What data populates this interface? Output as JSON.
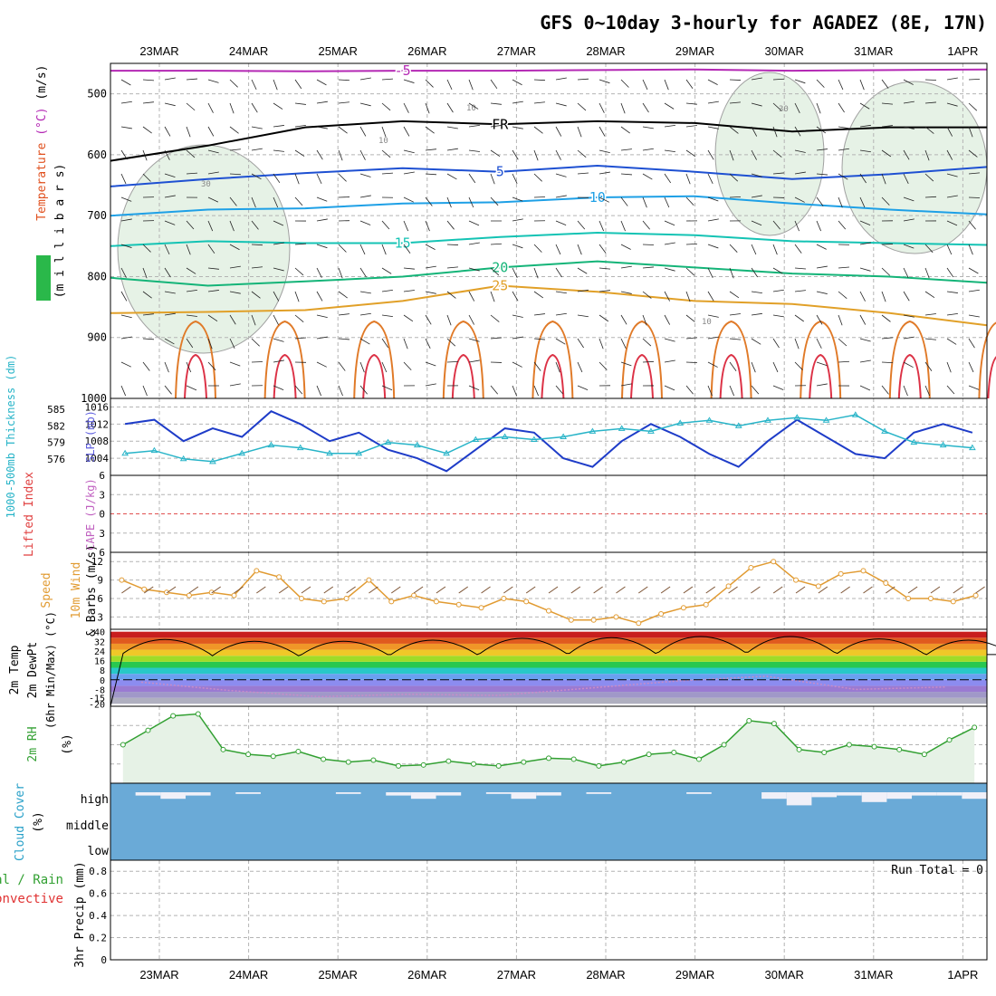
{
  "title": "GFS 0~10day 3-hourly for AGADEZ (8E, 17N)",
  "dates": [
    "23MAR",
    "24MAR",
    "25MAR",
    "26MAR",
    "27MAR",
    "28MAR",
    "29MAR",
    "30MAR",
    "31MAR",
    "1APR"
  ],
  "colors": {
    "grid": "#b4b4b4",
    "rh_fill": "#e6f2e6",
    "slp": "#1e3cc8",
    "thickness": "#28b4c8",
    "wind_speed": "#e19b32",
    "rh2m": "#32a032",
    "cloud": "#6aaad7",
    "cloud_gap": "#f0f0f8"
  },
  "chart_data": [
    {
      "panel": "upper-air",
      "type": "contour",
      "ylabel_parts": [
        "RH (%)",
        "Temperature (°C)",
        "Wind (m/s)"
      ],
      "ylabel_unit": "(m i l l i b a r s)",
      "ylim_mb": [
        450,
        1000
      ],
      "yticks": [
        500,
        600,
        700,
        800,
        900,
        1000
      ],
      "isotherms": [
        {
          "label": "-5",
          "color": "#b428b4",
          "level_mb": [
            462,
            462,
            463,
            462,
            462,
            461,
            460,
            462,
            461,
            460
          ]
        },
        {
          "label": "FR",
          "color": "#000000",
          "level_mb": [
            610,
            585,
            555,
            545,
            550,
            545,
            548,
            562,
            555,
            555
          ]
        },
        {
          "label": "5",
          "color": "#1e50d2",
          "level_mb": [
            652,
            640,
            630,
            622,
            628,
            618,
            628,
            640,
            632,
            620
          ]
        },
        {
          "label": "10",
          "color": "#1ea0e6",
          "level_mb": [
            700,
            690,
            688,
            680,
            678,
            670,
            668,
            680,
            690,
            698
          ]
        },
        {
          "label": "15",
          "color": "#14c3b4",
          "level_mb": [
            750,
            742,
            745,
            745,
            735,
            728,
            732,
            742,
            745,
            748
          ]
        },
        {
          "label": "20",
          "color": "#14b478",
          "level_mb": [
            802,
            815,
            808,
            800,
            785,
            775,
            785,
            795,
            800,
            810
          ]
        },
        {
          "label": "25",
          "color": "#e1a028",
          "level_mb": [
            860,
            858,
            855,
            840,
            815,
            825,
            840,
            845,
            860,
            880
          ]
        }
      ],
      "rh_labels": [
        "10",
        "10",
        "30",
        "30",
        "10"
      ]
    },
    {
      "panel": "slp-thickness",
      "type": "line",
      "ylabel_left": "1000-500mb Thickness (dm)",
      "ylabel_right": "SLP (mb)",
      "thickness_ticks": [
        576,
        579,
        582,
        585
      ],
      "slp_ticks": [
        1004,
        1008,
        1012,
        1016
      ],
      "series": [
        {
          "name": "SLP (mb)",
          "values": [
            1012,
            1013,
            1008,
            1011,
            1009,
            1015,
            1012,
            1008,
            1010,
            1006,
            1004,
            1001,
            1006,
            1011,
            1010,
            1004,
            1002,
            1008,
            1012,
            1009,
            1005,
            1002,
            1008,
            1013,
            1009,
            1005,
            1004,
            1010,
            1012,
            1010
          ]
        },
        {
          "name": "1000-500mb Thickness (dm)",
          "values": [
            577,
            577.5,
            576,
            575.5,
            577,
            578.5,
            578,
            577,
            577,
            579,
            578.5,
            577,
            579.5,
            580,
            579.5,
            580,
            581,
            581.5,
            581,
            582.5,
            583,
            582,
            583,
            583.5,
            583,
            584,
            581,
            579,
            578.5,
            578
          ]
        }
      ]
    },
    {
      "panel": "cape-li",
      "type": "line",
      "ylabel_left": "CAPE (J/kg)",
      "ylabel_right": "Lifted Index",
      "yticks": [
        -6,
        -3,
        0,
        3,
        6
      ],
      "series": [
        {
          "name": "Lifted Index",
          "values": [
            6,
            6,
            6,
            6,
            6,
            6,
            6,
            6,
            6,
            6
          ]
        }
      ]
    },
    {
      "panel": "wind10m",
      "type": "line",
      "ylabel": "10m Wind Speed & Barbs (m/s)",
      "yticks": [
        3,
        6,
        9,
        12
      ],
      "series": [
        {
          "name": "Speed",
          "values": [
            9,
            7.5,
            7,
            6.5,
            7,
            6.5,
            10.5,
            9.5,
            6,
            5.5,
            6,
            9,
            5.5,
            6.5,
            5.5,
            5,
            4.5,
            6,
            5.5,
            4,
            2.5,
            2.5,
            3,
            2,
            3.5,
            4.5,
            5,
            8,
            11,
            12,
            9,
            8,
            10,
            10.5,
            8.5,
            6,
            6,
            5.5,
            6.5
          ]
        }
      ]
    },
    {
      "panel": "temp2m",
      "type": "area",
      "ylabel_parts": [
        "2m Temp",
        "2m DewPt",
        "(6hr Min/Max) (°C)"
      ],
      "yticks": [
        -20,
        -15,
        -8,
        0,
        8,
        16,
        24,
        32,
        40
      ],
      "series": [
        {
          "name": "2m Temp (daily max)",
          "values": [
            37,
            36,
            35,
            37,
            39,
            40,
            41,
            41,
            38,
            37
          ]
        },
        {
          "name": "2m Temp (daily min)",
          "values": [
            22,
            20,
            21,
            21,
            22,
            22,
            23,
            23,
            22,
            21
          ]
        },
        {
          "name": "2m DewPt",
          "values": [
            -2,
            -9,
            -14,
            -12,
            -13,
            -7,
            -1,
            3,
            -8,
            -6
          ]
        }
      ]
    },
    {
      "panel": "rh2m",
      "type": "line",
      "ylabel": "2m RH (%)",
      "series": [
        {
          "name": "2m RH",
          "values": [
            40,
            55,
            70,
            72,
            35,
            30,
            28,
            33,
            25,
            22,
            24,
            18,
            19,
            23,
            20,
            18,
            22,
            26,
            25,
            18,
            22,
            30,
            32,
            25,
            40,
            65,
            62,
            35,
            32,
            40,
            38,
            35,
            30,
            45,
            58
          ]
        }
      ]
    },
    {
      "panel": "cloud",
      "type": "bar",
      "ylabel": "Cloud Cover (%)",
      "levels": [
        "high",
        "middle",
        "low"
      ],
      "series": [
        {
          "name": "high",
          "values": [
            0,
            20,
            40,
            20,
            0,
            10,
            0,
            0,
            0,
            10,
            0,
            20,
            40,
            20,
            0,
            10,
            40,
            20,
            0,
            10,
            0,
            0,
            0,
            10,
            0,
            0,
            40,
            80,
            30,
            20,
            60,
            40,
            20,
            20,
            40
          ]
        },
        {
          "name": "middle",
          "values": [
            0,
            0,
            0,
            0,
            0,
            0,
            0,
            0,
            0,
            0,
            0,
            0,
            0,
            0,
            0,
            0,
            0,
            0,
            0,
            0,
            0,
            0,
            0,
            0,
            0,
            0,
            0,
            0,
            0,
            0,
            0,
            0,
            10,
            0,
            0
          ]
        },
        {
          "name": "low",
          "values": [
            0,
            0,
            0,
            0,
            0,
            0,
            0,
            0,
            0,
            0,
            0,
            0,
            0,
            0,
            0,
            0,
            0,
            0,
            0,
            0,
            0,
            0,
            0,
            0,
            0,
            0,
            0,
            0,
            0,
            0,
            0,
            0,
            0,
            0,
            0
          ]
        }
      ]
    },
    {
      "panel": "precip",
      "type": "bar",
      "ylabel": "3hr Precip (mm)",
      "legend_parts": [
        "Total / Rain",
        "Convective"
      ],
      "annotation": "Run Total = 0",
      "ylim": [
        0,
        0.9
      ],
      "yticks": [
        0,
        0.2,
        0.4,
        0.6,
        0.8
      ],
      "series": [
        {
          "name": "Total",
          "values": [
            0,
            0,
            0,
            0,
            0,
            0,
            0,
            0,
            0,
            0
          ]
        }
      ]
    }
  ]
}
